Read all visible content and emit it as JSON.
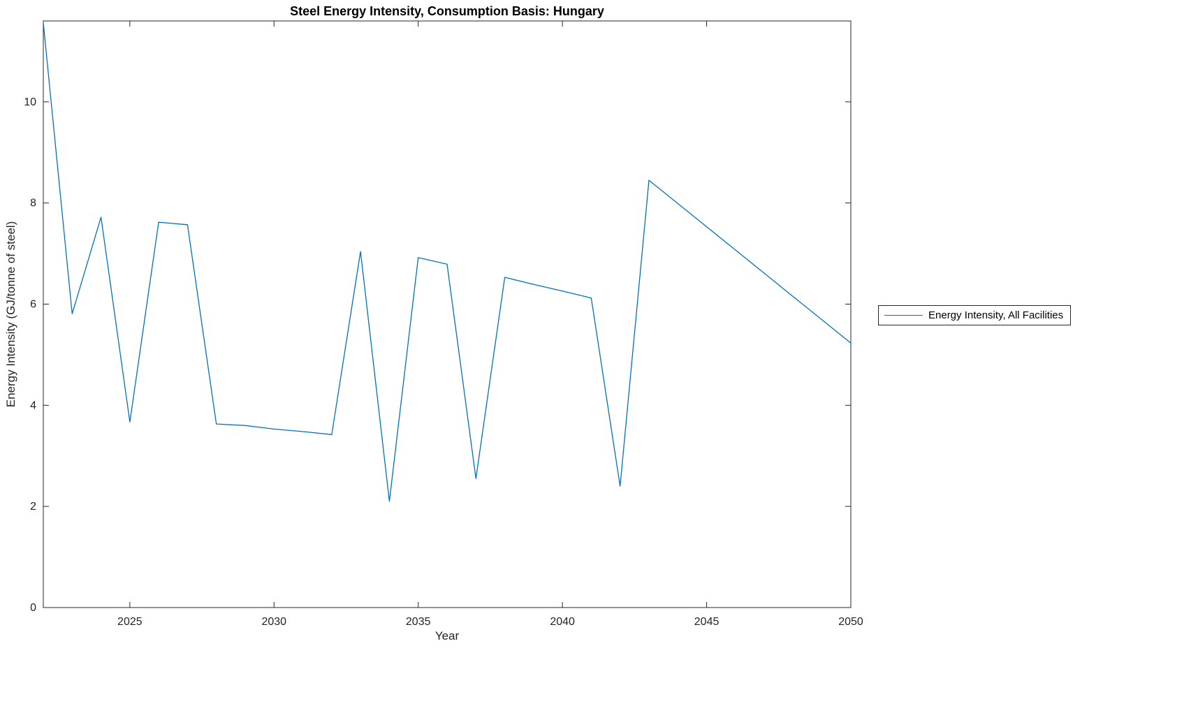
{
  "figure": {
    "title": "Steel Energy Intensity, Consumption Basis: Hungary",
    "xlabel": "Year",
    "ylabel": "Energy Intensity (GJ/tonne of steel)",
    "legend": {
      "label": "Energy Intensity, All Facilities"
    }
  },
  "chart_data": {
    "type": "line",
    "title": "Steel Energy Intensity, Consumption Basis: Hungary",
    "xlabel": "Year",
    "ylabel": "Energy Intensity (GJ/tonne of steel)",
    "xlim": [
      2022,
      2050
    ],
    "ylim": [
      0,
      11.6
    ],
    "x_ticks": [
      2025,
      2030,
      2035,
      2040,
      2045,
      2050
    ],
    "y_ticks": [
      0,
      2,
      4,
      6,
      8,
      10
    ],
    "grid": false,
    "legend_position": "right-outside",
    "background": "#ffffff",
    "axis_color": "#262626",
    "x": [
      2022,
      2023,
      2024,
      2025,
      2026,
      2027,
      2028,
      2029,
      2030,
      2031,
      2032,
      2033,
      2034,
      2035,
      2036,
      2037,
      2038,
      2039,
      2040,
      2041,
      2042,
      2043,
      2044,
      2045,
      2046,
      2047,
      2048,
      2049,
      2050
    ],
    "series": [
      {
        "name": "Energy Intensity, All Facilities",
        "color": "#0072BD",
        "values": [
          11.56,
          5.81,
          7.72,
          3.67,
          7.62,
          7.57,
          3.63,
          3.6,
          3.53,
          3.48,
          3.42,
          7.04,
          2.1,
          6.92,
          6.79,
          2.55,
          6.53,
          6.39,
          6.26,
          6.12,
          2.4,
          8.45,
          7.99,
          7.53,
          7.07,
          6.61,
          6.15,
          5.69,
          5.23
        ]
      }
    ]
  }
}
